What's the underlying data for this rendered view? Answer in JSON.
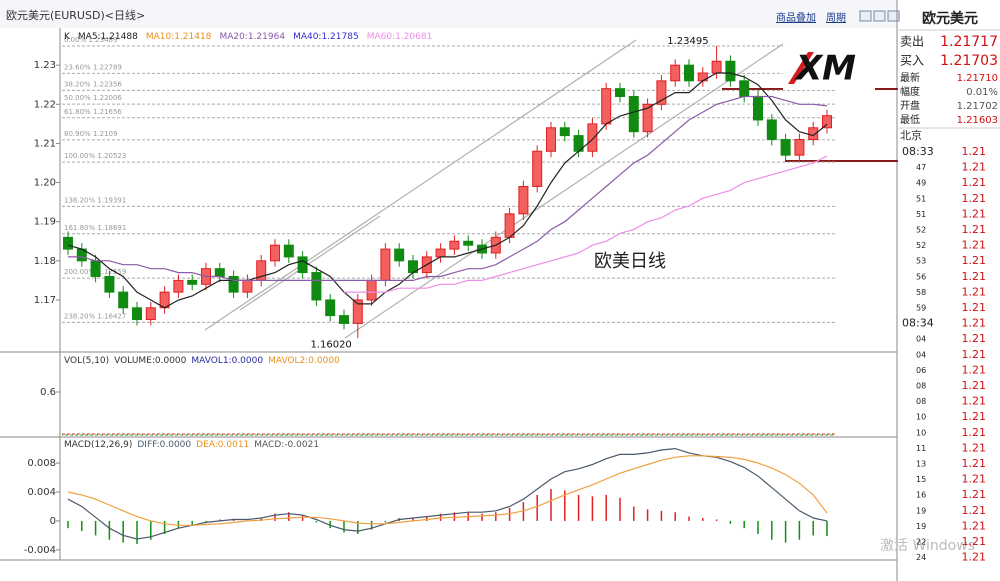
{
  "header": {
    "title": "欧元美元(EURUSD)<日线>",
    "menu": [
      "商品叠加",
      "周期"
    ]
  },
  "chart_data": [
    {
      "type": "candlestick",
      "prefix": "K",
      "indicators": [
        {
          "name": "MA5:",
          "value": 1.21488,
          "color": "#222222",
          "values": [
            1.184,
            1.183,
            1.181,
            1.178,
            1.176,
            1.172,
            1.17,
            1.168,
            1.17,
            1.171,
            1.173,
            1.175,
            1.175,
            1.175,
            1.176,
            1.177,
            1.179,
            1.18,
            1.178,
            1.176,
            1.172,
            1.169,
            1.169,
            1.172,
            1.174,
            1.177,
            1.179,
            1.181,
            1.181,
            1.182,
            1.183,
            1.184,
            1.186,
            1.189,
            1.194,
            1.2,
            1.205,
            1.208,
            1.211,
            1.215,
            1.217,
            1.218,
            1.219,
            1.221,
            1.223,
            1.223,
            1.226,
            1.228,
            1.228,
            1.227,
            1.225,
            1.221,
            1.216,
            1.213,
            1.212,
            1.2149
          ]
        },
        {
          "name": "MA10:",
          "value": 1.21418,
          "color": "#e8901c"
        },
        {
          "name": "MA20:",
          "value": 1.21964,
          "color": "#8a5aa8",
          "values": [
            1.181,
            1.181,
            1.18,
            1.18,
            1.179,
            1.179,
            1.178,
            1.178,
            1.177,
            1.177,
            1.176,
            1.176,
            1.175,
            1.175,
            1.175,
            1.175,
            1.175,
            1.175,
            1.175,
            1.175,
            1.175,
            1.175,
            1.175,
            1.175,
            1.175,
            1.175,
            1.176,
            1.176,
            1.177,
            1.178,
            1.178,
            1.179,
            1.181,
            1.183,
            1.185,
            1.188,
            1.19,
            1.193,
            1.196,
            1.199,
            1.202,
            1.205,
            1.207,
            1.21,
            1.213,
            1.216,
            1.218,
            1.22,
            1.221,
            1.222,
            1.222,
            1.222,
            1.221,
            1.22,
            1.22,
            1.2196
          ]
        },
        {
          "name": "MA40:",
          "value": 1.21785,
          "color": "#3030c8"
        },
        {
          "name": "MA60:",
          "value": 1.20681,
          "color": "#f08ce8",
          "values": [
            null,
            null,
            null,
            null,
            null,
            null,
            null,
            null,
            null,
            null,
            null,
            null,
            null,
            null,
            null,
            null,
            null,
            null,
            null,
            null,
            1.172,
            1.172,
            1.172,
            1.172,
            1.173,
            1.173,
            1.173,
            1.174,
            1.174,
            1.175,
            1.175,
            1.176,
            1.177,
            1.178,
            1.179,
            1.18,
            1.181,
            1.182,
            1.184,
            1.185,
            1.187,
            1.188,
            1.19,
            1.191,
            1.193,
            1.194,
            1.196,
            1.197,
            1.198,
            1.2,
            1.201,
            1.202,
            1.203,
            1.204,
            1.205,
            1.2068
          ]
        }
      ],
      "opens": [
        1.186,
        1.183,
        1.18,
        1.176,
        1.172,
        1.168,
        1.165,
        1.168,
        1.172,
        1.175,
        1.174,
        1.178,
        1.176,
        1.172,
        1.175,
        1.18,
        1.184,
        1.181,
        1.177,
        1.17,
        1.166,
        1.164,
        1.17,
        1.175,
        1.183,
        1.18,
        1.177,
        1.181,
        1.183,
        1.185,
        1.184,
        1.182,
        1.186,
        1.192,
        1.199,
        1.208,
        1.214,
        1.212,
        1.208,
        1.215,
        1.224,
        1.222,
        1.213,
        1.22,
        1.226,
        1.23,
        1.226,
        1.228,
        1.231,
        1.226,
        1.222,
        1.216,
        1.211,
        1.207,
        1.211,
        1.214
      ],
      "highs": [
        1.1875,
        1.1845,
        1.1815,
        1.1775,
        1.1735,
        1.1695,
        1.1695,
        1.1735,
        1.1765,
        1.1765,
        1.1795,
        1.1795,
        1.1775,
        1.1765,
        1.1815,
        1.1855,
        1.1855,
        1.1825,
        1.1785,
        1.1715,
        1.1675,
        1.1715,
        1.1765,
        1.1845,
        1.1845,
        1.1815,
        1.1825,
        1.1845,
        1.1865,
        1.1865,
        1.1855,
        1.1875,
        1.1935,
        1.2005,
        1.2095,
        1.2155,
        1.2155,
        1.2135,
        1.2165,
        1.2255,
        1.2255,
        1.2235,
        1.2215,
        1.2275,
        1.2315,
        1.2315,
        1.2295,
        1.23495,
        1.2325,
        1.2275,
        1.2235,
        1.2175,
        1.2125,
        1.2125,
        1.2155,
        1.2186
      ],
      "lows": [
        1.1815,
        1.1785,
        1.1745,
        1.1705,
        1.1665,
        1.1635,
        1.1635,
        1.1665,
        1.1705,
        1.1725,
        1.1725,
        1.1745,
        1.1705,
        1.1705,
        1.1735,
        1.1785,
        1.1795,
        1.1755,
        1.1685,
        1.1645,
        1.1625,
        1.1602,
        1.1685,
        1.1735,
        1.1785,
        1.1755,
        1.1755,
        1.1795,
        1.1815,
        1.1825,
        1.1805,
        1.1805,
        1.1845,
        1.1905,
        1.1975,
        1.2065,
        1.2105,
        1.2065,
        1.2065,
        1.2135,
        1.2205,
        1.2115,
        1.2115,
        1.2185,
        1.2245,
        1.2245,
        1.2245,
        1.2265,
        1.2245,
        1.2205,
        1.2145,
        1.2095,
        1.2055,
        1.2055,
        1.2095,
        1.2125
      ],
      "closes": [
        1.183,
        1.18,
        1.176,
        1.172,
        1.168,
        1.165,
        1.168,
        1.172,
        1.175,
        1.174,
        1.178,
        1.176,
        1.172,
        1.175,
        1.18,
        1.184,
        1.181,
        1.177,
        1.17,
        1.166,
        1.164,
        1.17,
        1.175,
        1.183,
        1.18,
        1.177,
        1.181,
        1.183,
        1.185,
        1.184,
        1.182,
        1.186,
        1.192,
        1.199,
        1.208,
        1.214,
        1.212,
        1.208,
        1.215,
        1.224,
        1.222,
        1.213,
        1.22,
        1.226,
        1.23,
        1.226,
        1.228,
        1.231,
        1.226,
        1.222,
        1.216,
        1.211,
        1.207,
        1.211,
        1.214,
        1.2171
      ],
      "ylim": [
        1.1567,
        1.2395
      ],
      "yticks": [
        1.17,
        1.18,
        1.19,
        {
          "value": 1.2,
          "label": "1.20"
        },
        1.21,
        1.22,
        1.23
      ],
      "fib_levels": [
        {
          "pct": "0.00%",
          "price": 1.23489
        },
        {
          "pct": "23.60%",
          "price": 1.22789
        },
        {
          "pct": "38.20%",
          "price": 1.22356
        },
        {
          "pct": "50.00%",
          "price": 1.22006
        },
        {
          "pct": "61.80%",
          "price": 1.21656
        },
        {
          "pct": "80.90%",
          "price": 1.2109
        },
        {
          "pct": "100.00%",
          "price": 1.20523
        },
        {
          "pct": "138.20%",
          "price": 1.19391
        },
        {
          "pct": "161.80%",
          "price": 1.18691
        },
        {
          "pct": "200.00%",
          "price": 1.17559
        },
        {
          "pct": "238.20%",
          "price": 1.16427
        }
      ],
      "high_label": 1.23495,
      "low_label": 1.1602,
      "low_label_text": "1.16020",
      "annotation": "欧美日线"
    },
    {
      "type": "volume",
      "legend": [
        "VOL(5,10)",
        "VOLUME:0.0000",
        "MAVOL1:0.0000",
        "MAVOL2:0.0000"
      ],
      "ylim": [
        0,
        1.2
      ],
      "yticks": [
        0.6
      ]
    },
    {
      "type": "macd",
      "legend": [
        {
          "label": "MACD(12,26,9)"
        },
        {
          "label": "DIFF:",
          "text": "0.0000"
        },
        {
          "label": "DEA:",
          "value": 0.0011
        },
        {
          "label": "MACD:",
          "value": -0.0021
        }
      ],
      "ylim": [
        -0.0054,
        0.0116
      ],
      "yticks": [
        -0.004,
        0,
        0.004,
        0.008
      ],
      "histogram": [
        -0.001,
        -0.0014,
        -0.002,
        -0.0026,
        -0.003,
        -0.0032,
        -0.0026,
        -0.0018,
        -0.001,
        -0.0006,
        -0.0002,
        0.0002,
        0.0003,
        0,
        0.0004,
        0.001,
        0.0012,
        0.0008,
        -0.0002,
        -0.001,
        -0.0016,
        -0.0018,
        -0.0012,
        -0.0002,
        0.0004,
        0.0004,
        0.0006,
        0.001,
        0.0012,
        0.0012,
        0.001,
        0.0012,
        0.0018,
        0.0026,
        0.0036,
        0.0044,
        0.0042,
        0.0036,
        0.0034,
        0.0036,
        0.0032,
        0.002,
        0.0016,
        0.0014,
        0.0012,
        0.0006,
        0.0004,
        0.0002,
        -0.0004,
        -0.001,
        -0.0018,
        -0.0026,
        -0.003,
        -0.0026,
        -0.002,
        -0.0021
      ],
      "series": [
        {
          "color": "#4a5a6a",
          "values": [
            0.003,
            0.002,
            0.0005,
            -0.001,
            -0.002,
            -0.0025,
            -0.0022,
            -0.0016,
            -0.001,
            -0.0006,
            -0.0002,
            0,
            0.0002,
            0.0002,
            0.0004,
            0.0008,
            0.001,
            0.0008,
            0.0002,
            -0.0006,
            -0.0012,
            -0.0014,
            -0.001,
            -0.0004,
            0.0002,
            0.0004,
            0.0006,
            0.0008,
            0.001,
            0.0012,
            0.0012,
            0.0014,
            0.002,
            0.003,
            0.0044,
            0.0058,
            0.0068,
            0.0072,
            0.0078,
            0.0086,
            0.0092,
            0.0092,
            0.0094,
            0.0098,
            0.01,
            0.0094,
            0.009,
            0.0088,
            0.0082,
            0.0074,
            0.0062,
            0.0046,
            0.003,
            0.0014,
            0.0004,
            0
          ]
        },
        {
          "color": "#f0a040",
          "values": [
            0.004,
            0.0036,
            0.003,
            0.0022,
            0.0014,
            0.0006,
            0,
            -0.0004,
            -0.0006,
            -0.0006,
            -0.0005,
            -0.0004,
            -0.0002,
            0,
            0.0001,
            0.0003,
            0.0004,
            0.0005,
            0.0005,
            0.0003,
            0,
            -0.0003,
            -0.0004,
            -0.0004,
            -0.0002,
            0,
            0.0002,
            0.0004,
            0.0005,
            0.0006,
            0.0007,
            0.0008,
            0.001,
            0.0014,
            0.002,
            0.0028,
            0.0036,
            0.0043,
            0.005,
            0.0058,
            0.0066,
            0.0072,
            0.0078,
            0.0084,
            0.0088,
            0.009,
            0.009,
            0.0089,
            0.0088,
            0.0085,
            0.008,
            0.0073,
            0.0064,
            0.0052,
            0.0036,
            0.0011
          ]
        }
      ]
    }
  ],
  "quote_panel": {
    "title": "欧元美元",
    "logo": "XM",
    "rows": [
      {
        "label": "卖出",
        "value": 1.21717
      },
      {
        "label": "买入",
        "value": 1.21703
      },
      {
        "label": "最新",
        "value": "1.21710"
      },
      {
        "label": "幅度",
        "value": "0.01%"
      },
      {
        "label": "开盘",
        "value": 1.21702
      },
      {
        "label": "最低",
        "value": 1.21603
      }
    ],
    "tick_header": "北京",
    "ticks": [
      {
        "time": "08:33",
        "price": 1.21
      },
      {
        "time": "47",
        "price": 1.21
      },
      {
        "time": "49",
        "price": 1.21
      },
      {
        "time": "51",
        "price": 1.21
      },
      {
        "time": "51",
        "price": 1.21
      },
      {
        "time": "52",
        "price": 1.21
      },
      {
        "time": "52",
        "price": 1.21
      },
      {
        "time": "53",
        "price": 1.21
      },
      {
        "time": "56",
        "price": 1.21
      },
      {
        "time": "58",
        "price": 1.21
      },
      {
        "time": "59",
        "price": 1.21
      },
      {
        "time": "08:34",
        "price": 1.21
      },
      {
        "time": "04",
        "price": 1.21
      },
      {
        "time": "04",
        "price": 1.21
      },
      {
        "time": "06",
        "price": 1.21
      },
      {
        "time": "08",
        "price": 1.21
      },
      {
        "time": "08",
        "price": 1.21
      },
      {
        "time": "10",
        "price": 1.21
      },
      {
        "time": "10",
        "price": 1.21
      },
      {
        "time": "11",
        "price": 1.21
      },
      {
        "time": "13",
        "price": 1.21
      },
      {
        "time": "15",
        "price": 1.21
      },
      {
        "time": "16",
        "price": 1.21
      },
      {
        "time": "19",
        "price": 1.21
      },
      {
        "time": "19",
        "price": 1.21
      },
      {
        "time": "22",
        "price": 1.21
      },
      {
        "time": "24",
        "price": 1.21
      }
    ]
  },
  "watermark": "激活 Windows"
}
